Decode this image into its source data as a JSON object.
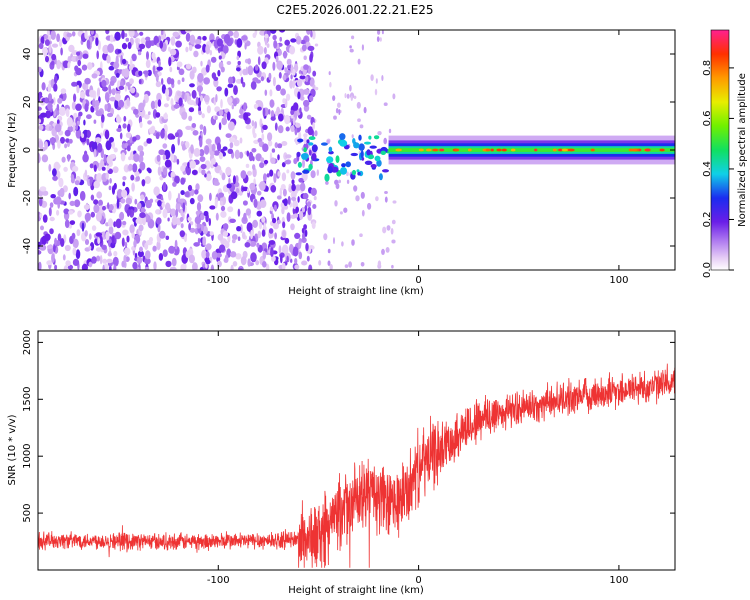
{
  "title": "C2E5.2026.001.22.21.E25",
  "chart_data": [
    {
      "type": "heatmap",
      "title": "C2E5.2026.001.22.21.E25",
      "xlabel": "Height of straight line (km)",
      "ylabel": "Frequency (Hz)",
      "xlim": [
        -190,
        128
      ],
      "ylim": [
        -50,
        50
      ],
      "xticks": [
        -100,
        0,
        100
      ],
      "yticks": [
        -40,
        -20,
        0,
        20,
        40
      ],
      "colorbar": {
        "label": "Normalized spectral amplitude",
        "range": [
          0,
          0.95
        ],
        "ticks": [
          0.0,
          0.2,
          0.4,
          0.6,
          0.8
        ],
        "tick_labels": [
          "0.0",
          "0.2",
          "0.4",
          "0.6",
          "0.8"
        ]
      },
      "regions": [
        {
          "name": "noise",
          "x_range": [
            -190,
            -50
          ],
          "amplitude": 0.15
        },
        {
          "name": "transition",
          "x_range": [
            -60,
            -15
          ],
          "amplitude": 0.35
        },
        {
          "name": "signal line",
          "x_range": [
            -15,
            128
          ],
          "frequency": 0,
          "peak_amplitude": 0.95
        }
      ]
    },
    {
      "type": "line",
      "xlabel": "Height of straight line (km)",
      "ylabel": "SNR (10 * v/v)",
      "xlim": [
        -190,
        128
      ],
      "ylim": [
        0,
        2100
      ],
      "xticks": [
        -100,
        0,
        100
      ],
      "yticks": [
        500,
        1000,
        1500,
        2000
      ],
      "series": [
        {
          "name": "SNR",
          "color": "#ee3333",
          "x": [
            -190,
            -170,
            -150,
            -130,
            -110,
            -90,
            -70,
            -60,
            -50,
            -45,
            -40,
            -35,
            -30,
            -25,
            -20,
            -15,
            -10,
            -5,
            0,
            10,
            20,
            30,
            40,
            50,
            60,
            70,
            80,
            90,
            100,
            110,
            120,
            128
          ],
          "y": [
            260,
            260,
            255,
            250,
            250,
            255,
            260,
            270,
            290,
            380,
            500,
            560,
            620,
            700,
            650,
            560,
            600,
            700,
            900,
            1050,
            1200,
            1320,
            1380,
            1420,
            1450,
            1500,
            1520,
            1550,
            1580,
            1600,
            1620,
            1650
          ]
        }
      ]
    }
  ]
}
